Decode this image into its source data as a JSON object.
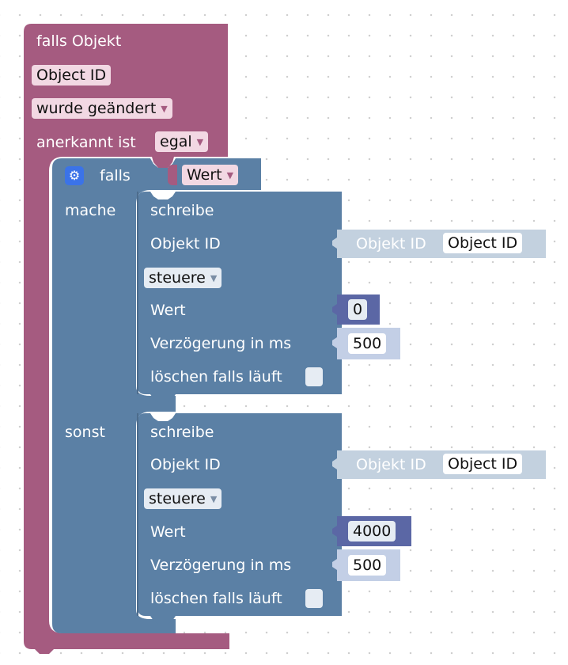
{
  "event_block": {
    "header": "falls Objekt",
    "object_chip": "Object ID",
    "trigger_dropdown": "wurde geändert",
    "ack_label": "anerkannt ist",
    "ack_dropdown": "egal",
    "color": "#a55b80"
  },
  "if_block": {
    "falls_label": "falls",
    "condition_chip": "Wert",
    "mache_label": "mache",
    "sonst_label": "sonst",
    "gear_icon": "gear-icon",
    "color": "#5b80a5"
  },
  "write_blocks": [
    {
      "title": "schreibe",
      "object_label": "Objekt ID",
      "object_value_label": "Objekt ID",
      "object_value": "Object ID",
      "mode_dropdown": "steuere",
      "value_label": "Wert",
      "value": "0",
      "delay_label": "Verzögerung in ms",
      "delay": "500",
      "clear_label": "löschen falls läuft"
    },
    {
      "title": "schreibe",
      "object_label": "Objekt ID",
      "object_value_label": "Objekt ID",
      "object_value": "Object ID",
      "mode_dropdown": "steuere",
      "value_label": "Wert",
      "value": "4000",
      "delay_label": "Verzögerung in ms",
      "delay": "500",
      "clear_label": "löschen falls läuft"
    }
  ]
}
